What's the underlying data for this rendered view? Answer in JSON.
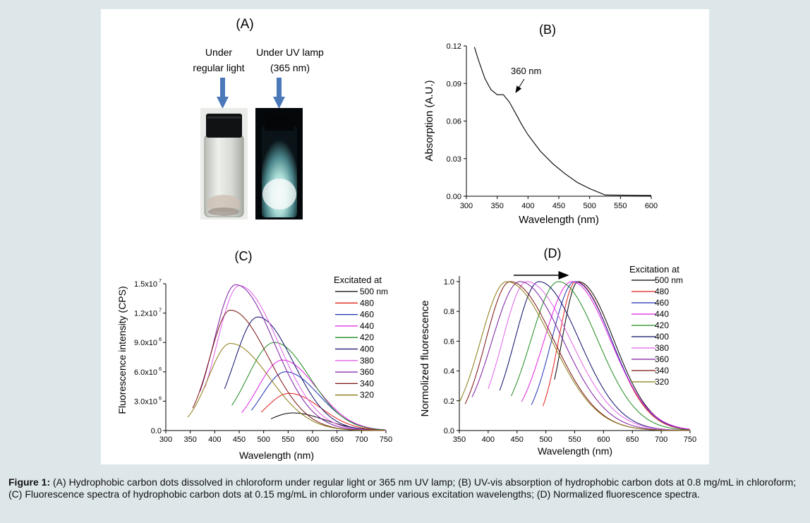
{
  "figure": {
    "caption_label": "Figure 1:",
    "caption_text": "(A) Hydrophobic carbon dots dissolved in chloroform under regular light or 365 nm UV lamp; (B) UV-vis absorption of hydrophobic carbon dots at 0.8 mg/mL in chloroform; (C) Fluorescence spectra of hydrophobic carbon dots at 0.15 mg/mL in chloroform under various excitation wavelengths; (D) Normalized fluorescence spectra."
  },
  "panel_a": {
    "label": "(A)",
    "left_line1": "Under",
    "left_line2": "regular light",
    "right_line1": "Under UV lamp",
    "right_line2": "(365 nm)"
  },
  "colors": {
    "500": "#000000",
    "480": "#e0201a",
    "460": "#1c2fb0",
    "440": "#e020e0",
    "420": "#1e8a1e",
    "400": "#0a0a6a",
    "380": "#e060e8",
    "360": "#7a1aa0",
    "340": "#7a1010",
    "320": "#8a7a10"
  },
  "chart_data": [
    {
      "type": "line",
      "panel": "(B)",
      "xlabel": "Wavelength (nm)",
      "ylabel": "Absorption (A.U.)",
      "xlim": [
        300,
        600
      ],
      "ylim": [
        0,
        0.12
      ],
      "xticks": [
        "300",
        "350",
        "400",
        "450",
        "500",
        "550",
        "600"
      ],
      "yticks": [
        "0.00",
        "0.03",
        "0.06",
        "0.09",
        "0.12"
      ],
      "annotation": "360 nm",
      "annotation_point": [
        360,
        0.081
      ],
      "series": [
        {
          "x": [
            313,
            320,
            330,
            340,
            350,
            360,
            370,
            380,
            390,
            400,
            420,
            440,
            460,
            480,
            500,
            520,
            525,
            540,
            560,
            580,
            600
          ],
          "y": [
            0.119,
            0.108,
            0.094,
            0.085,
            0.081,
            0.081,
            0.075,
            0.066,
            0.057,
            0.049,
            0.036,
            0.026,
            0.018,
            0.011,
            0.006,
            0.002,
            0.001,
            0.0009,
            0.0008,
            0.0007,
            0.0006
          ]
        }
      ]
    },
    {
      "type": "line",
      "panel": "(C)",
      "xlabel": "Wavelength (nm)",
      "ylabel": "Fluorescence intensity (CPS)",
      "xlim": [
        300,
        750
      ],
      "ylim": [
        0,
        15000000
      ],
      "xticks": [
        "300",
        "350",
        "400",
        "450",
        "500",
        "550",
        "600",
        "650",
        "700",
        "750"
      ],
      "yticks": [
        "0.0",
        "3.0x10",
        "6.0x10",
        "9.0x10",
        "1.2x10",
        "1.5x10"
      ],
      "ytick_exp": [
        "",
        "6",
        "6",
        "6",
        "7",
        "7"
      ],
      "legend_title": "Excitated at",
      "legend_position": "right",
      "series": [
        {
          "name": "500 nm",
          "key": "500",
          "peak": 560,
          "amp": 1800000,
          "start": 515,
          "wl": 50,
          "wr": 65
        },
        {
          "name": "480",
          "key": "480",
          "peak": 552,
          "amp": 3800000,
          "start": 495,
          "wl": 48,
          "wr": 65
        },
        {
          "name": "460",
          "key": "460",
          "peak": 545,
          "amp": 6000000,
          "start": 475,
          "wl": 48,
          "wr": 68
        },
        {
          "name": "440",
          "key": "440",
          "peak": 538,
          "amp": 7200000,
          "start": 455,
          "wl": 50,
          "wr": 70
        },
        {
          "name": "420",
          "key": "420",
          "peak": 522,
          "amp": 9000000,
          "start": 435,
          "wl": 55,
          "wr": 72
        },
        {
          "name": "400",
          "key": "400",
          "peak": 488,
          "amp": 11600000,
          "start": 420,
          "wl": 48,
          "wr": 72
        },
        {
          "name": "380",
          "key": "380",
          "peak": 450,
          "amp": 14800000,
          "start": 380,
          "wl": 45,
          "wr": 80
        },
        {
          "name": "360",
          "key": "360",
          "peak": 443,
          "amp": 14900000,
          "start": 370,
          "wl": 45,
          "wr": 78
        },
        {
          "name": "340",
          "key": "340",
          "peak": 432,
          "amp": 12300000,
          "start": 355,
          "wl": 42,
          "wr": 78
        },
        {
          "name": "320",
          "key": "320",
          "peak": 432,
          "amp": 8900000,
          "start": 345,
          "wl": 45,
          "wr": 80
        }
      ]
    },
    {
      "type": "line",
      "panel": "(D)",
      "xlabel": "Wavelength (nm)",
      "ylabel": "Normolized fluorescence",
      "xlim": [
        350,
        750
      ],
      "ylim": [
        0,
        1.0
      ],
      "xticks": [
        "350",
        "400",
        "450",
        "500",
        "550",
        "600",
        "650",
        "700",
        "750"
      ],
      "yticks": [
        "0.0",
        "0.2",
        "0.4",
        "0.6",
        "0.8",
        "1.0"
      ],
      "legend_title": "Excitation at",
      "legend_position": "right",
      "arrow": "peak shift from 430 nm to 555 nm",
      "series": [
        {
          "name": "500 nm",
          "key": "500",
          "peak": 556,
          "start": 515,
          "wl": 28,
          "wr": 62
        },
        {
          "name": "480",
          "key": "480",
          "peak": 552,
          "start": 495,
          "wl": 30,
          "wr": 62
        },
        {
          "name": "460",
          "key": "460",
          "peak": 550,
          "start": 475,
          "wl": 40,
          "wr": 64
        },
        {
          "name": "440",
          "key": "440",
          "peak": 545,
          "start": 458,
          "wl": 48,
          "wr": 67
        },
        {
          "name": "420",
          "key": "420",
          "peak": 522,
          "start": 440,
          "wl": 48,
          "wr": 68
        },
        {
          "name": "400",
          "key": "400",
          "peak": 488,
          "start": 420,
          "wl": 42,
          "wr": 70
        },
        {
          "name": "380",
          "key": "380",
          "peak": 467,
          "start": 400,
          "wl": 42,
          "wr": 76
        },
        {
          "name": "360",
          "key": "360",
          "peak": 455,
          "start": 372,
          "wl": 48,
          "wr": 75
        },
        {
          "name": "340",
          "key": "340",
          "peak": 438,
          "start": 360,
          "wl": 42,
          "wr": 76
        },
        {
          "name": "320",
          "key": "320",
          "peak": 432,
          "start": 350,
          "wl": 45,
          "wr": 78
        }
      ]
    }
  ]
}
